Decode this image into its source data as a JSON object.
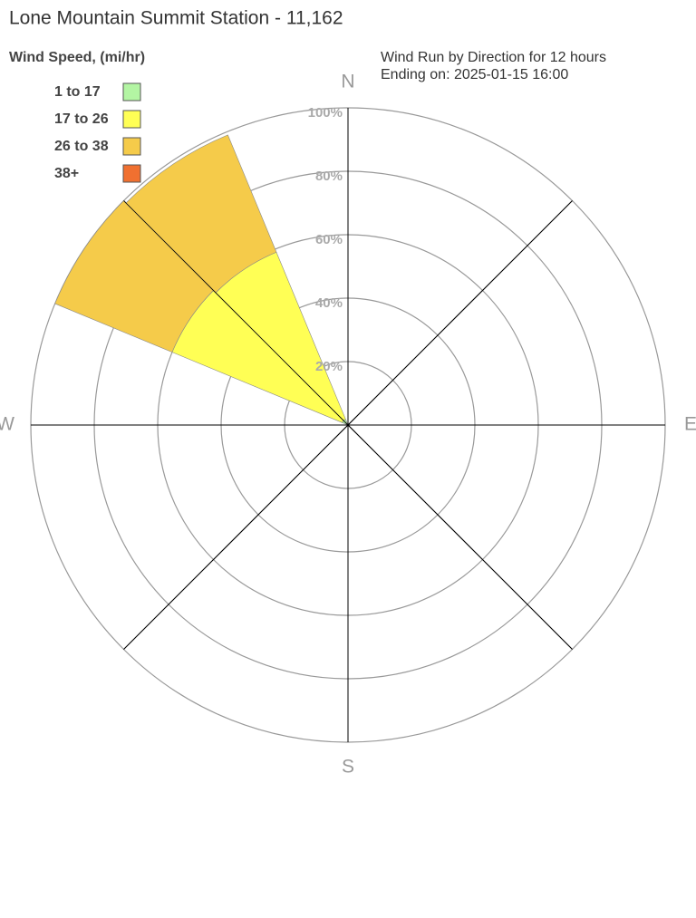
{
  "chart_data": {
    "type": "windrose",
    "title": "Lone Mountain Summit Station - 11,162",
    "legend_title": "Wind Speed, (mi/hr)",
    "subtitle": [
      "Wind Run by Direction for 12 hours",
      "Ending on: 2025-01-15 16:00"
    ],
    "compass": [
      "N",
      "E",
      "S",
      "W"
    ],
    "directions": [
      303.75,
      326.25
    ],
    "sector_width": 22.5,
    "rlim": [
      0,
      100
    ],
    "rticks": [
      {
        "value": 20,
        "label": "20%"
      },
      {
        "value": 40,
        "label": "40%"
      },
      {
        "value": 60,
        "label": "60%"
      },
      {
        "value": 80,
        "label": "80%"
      },
      {
        "value": 100,
        "label": "100%"
      }
    ],
    "series": [
      {
        "name": "1 to 17",
        "color": "#b3f5a3",
        "values": [
          2,
          2
        ]
      },
      {
        "name": "17 to 26",
        "color": "#ffff55",
        "values": [
          58,
          57
        ]
      },
      {
        "name": "26 to 38",
        "color": "#f5cb4a",
        "values": [
          40,
          40
        ]
      },
      {
        "name": "38+",
        "color": "#f07030",
        "values": [
          0,
          0
        ]
      }
    ]
  }
}
